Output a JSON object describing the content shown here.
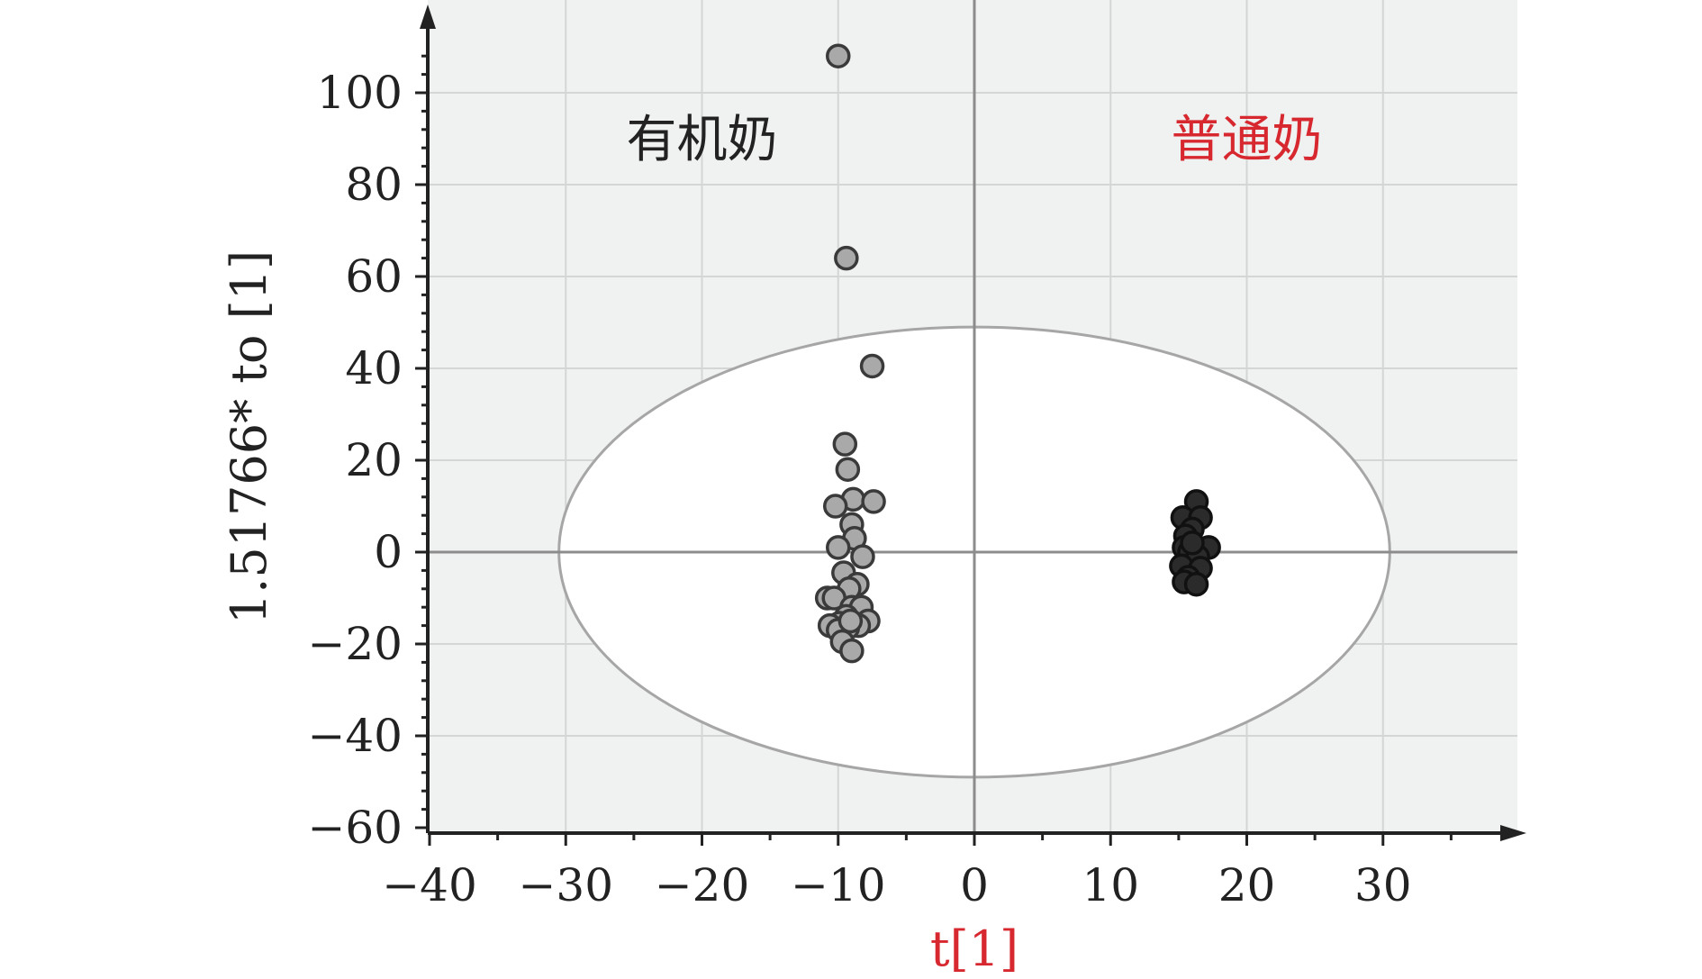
{
  "chart_data": {
    "type": "scatter",
    "title": "",
    "xlabel": "t[1]",
    "ylabel": "1.51766* to [1]",
    "xlim": [
      -40,
      40
    ],
    "ylim": [
      -60,
      110
    ],
    "x_ticks": [
      "−40",
      "−30",
      "−20",
      "−10",
      "0",
      "10",
      "20",
      "30"
    ],
    "x_tick_values": [
      -40,
      -30,
      -20,
      -10,
      0,
      10,
      20,
      30
    ],
    "y_ticks": [
      "−60",
      "−40",
      "−20",
      "0",
      "20",
      "40",
      "60",
      "80",
      "100"
    ],
    "y_tick_values": [
      -60,
      -40,
      -20,
      0,
      20,
      40,
      60,
      80,
      100
    ],
    "grid": true,
    "ellipse": {
      "center": [
        0,
        0
      ],
      "semi_x": 30.5,
      "semi_y": 49
    },
    "annotations": [
      {
        "text": "有机奶",
        "x": -20,
        "y": 90,
        "color": "#222222"
      },
      {
        "text": "普通奶",
        "x": 20,
        "y": 90,
        "color": "#d7282f"
      }
    ],
    "colors": {
      "organic": "#a9a9a9",
      "regular": "#2b2b2b",
      "accent": "#d7282f"
    },
    "series": [
      {
        "name": "有机奶",
        "color": "#a9a9a9",
        "points": [
          [
            -10,
            108
          ],
          [
            -9.4,
            64
          ],
          [
            -7.5,
            40.5
          ],
          [
            -9.5,
            23.5
          ],
          [
            -9.3,
            18
          ],
          [
            -8.9,
            11.5
          ],
          [
            -7.4,
            11
          ],
          [
            -10.2,
            10
          ],
          [
            -9.0,
            6
          ],
          [
            -8.8,
            3
          ],
          [
            -10.0,
            1
          ],
          [
            -8.2,
            -1
          ],
          [
            -9.6,
            -4.5
          ],
          [
            -8.6,
            -7
          ],
          [
            -9.2,
            -8
          ],
          [
            -10.8,
            -10
          ],
          [
            -10.3,
            -10
          ],
          [
            -9.0,
            -12
          ],
          [
            -8.3,
            -12
          ],
          [
            -9.4,
            -14
          ],
          [
            -7.8,
            -15
          ],
          [
            -9.9,
            -15.5
          ],
          [
            -10.6,
            -16
          ],
          [
            -8.5,
            -16
          ],
          [
            -9.3,
            -16.5
          ],
          [
            -10.0,
            -17
          ],
          [
            -9.1,
            -15
          ],
          [
            -9.7,
            -19.5
          ],
          [
            -9.0,
            -21.5
          ]
        ]
      },
      {
        "name": "普通奶",
        "color": "#2b2b2b",
        "points": [
          [
            16.3,
            11
          ],
          [
            15.3,
            7.5
          ],
          [
            16.6,
            7.5
          ],
          [
            16.0,
            5
          ],
          [
            15.5,
            3.5
          ],
          [
            17.2,
            1
          ],
          [
            15.4,
            1
          ],
          [
            15.8,
            0
          ],
          [
            16.4,
            -1
          ],
          [
            16.0,
            2
          ],
          [
            15.2,
            -3
          ],
          [
            16.6,
            -3.5
          ],
          [
            15.7,
            -5.5
          ],
          [
            15.4,
            -6.5
          ],
          [
            16.3,
            -7
          ]
        ]
      }
    ]
  }
}
